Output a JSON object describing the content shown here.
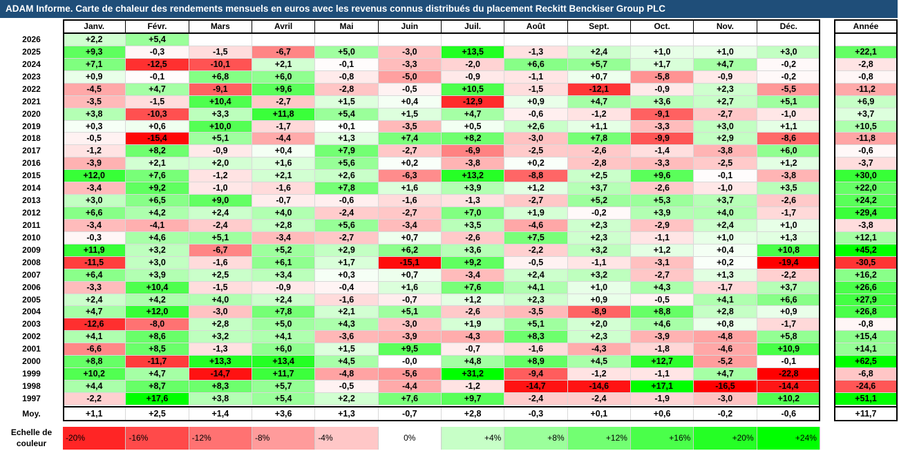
{
  "title": "ADAM Informe. Carte de chaleur des rendements mensuels en euros avec les revenus connus distribués du placement Reckitt Benckiser Group PLC",
  "chart_data": {
    "type": "heatmap",
    "columns": [
      "Janv.",
      "Févr.",
      "Mars",
      "Avril",
      "Mai",
      "Juin",
      "Juil.",
      "Août",
      "Sept.",
      "Oct.",
      "Nov.",
      "Déc."
    ],
    "year_header": "Année",
    "rows": [
      {
        "year": "2026",
        "months": [
          "+2,2",
          "+5,4",
          "",
          "",
          "",
          "",
          "",
          "",
          "",
          "",
          "",
          ""
        ],
        "annual": ""
      },
      {
        "year": "2025",
        "months": [
          "+9,3",
          "-0,3",
          "-1,5",
          "-6,7",
          "+5,0",
          "-3,0",
          "+13,5",
          "-1,3",
          "+2,4",
          "+1,0",
          "+1,0",
          "+3,0"
        ],
        "annual": "+22,1"
      },
      {
        "year": "2024",
        "months": [
          "+7,1",
          "-12,5",
          "-10,1",
          "+2,1",
          "-0,1",
          "-3,3",
          "-2,0",
          "+6,6",
          "+5,7",
          "+1,7",
          "+4,7",
          "-0,2"
        ],
        "annual": "-2,8"
      },
      {
        "year": "2023",
        "months": [
          "+0,9",
          "-0,1",
          "+6,8",
          "+6,0",
          "-0,8",
          "-5,0",
          "-0,9",
          "-1,1",
          "+0,7",
          "-5,8",
          "-0,9",
          "-0,2"
        ],
        "annual": "-0,8"
      },
      {
        "year": "2022",
        "months": [
          "-4,5",
          "+4,7",
          "-9,1",
          "+9,6",
          "-2,8",
          "-0,5",
          "+10,5",
          "-1,5",
          "-12,1",
          "-0,9",
          "+2,3",
          "-5,5"
        ],
        "annual": "-11,2"
      },
      {
        "year": "2021",
        "months": [
          "-3,5",
          "-1,5",
          "+10,4",
          "-2,7",
          "+1,5",
          "+0,4",
          "-12,9",
          "+0,9",
          "+4,7",
          "+3,6",
          "+2,7",
          "+5,1"
        ],
        "annual": "+6,9"
      },
      {
        "year": "2020",
        "months": [
          "+3,8",
          "-10,3",
          "+3,3",
          "+11,8",
          "+5,4",
          "+1,5",
          "+4,7",
          "-0,6",
          "-1,2",
          "-9,1",
          "-2,7",
          "-1,0"
        ],
        "annual": "+3,7"
      },
      {
        "year": "2019",
        "months": [
          "+0,3",
          "+0,6",
          "+10,0",
          "-1,7",
          "+0,1",
          "-3,5",
          "+0,5",
          "+2,6",
          "+1,1",
          "-3,3",
          "+3,0",
          "+1,1"
        ],
        "annual": "+10,5"
      },
      {
        "year": "2018",
        "months": [
          "-0,5",
          "-15,4",
          "+5,1",
          "-4,4",
          "+1,3",
          "+7,4",
          "+8,2",
          "-3,0",
          "+7,8",
          "-9,9",
          "+2,9",
          "-8,6"
        ],
        "annual": "-11,8"
      },
      {
        "year": "2017",
        "months": [
          "-1,2",
          "+8,2",
          "-0,9",
          "+0,4",
          "+7,9",
          "-2,7",
          "-6,9",
          "-2,5",
          "-2,6",
          "-1,4",
          "-3,8",
          "+6,0"
        ],
        "annual": "-0,6"
      },
      {
        "year": "2016",
        "months": [
          "-3,9",
          "+2,1",
          "+2,0",
          "+1,6",
          "+5,6",
          "+0,2",
          "-3,8",
          "+0,2",
          "-2,8",
          "-3,3",
          "-2,5",
          "+1,2"
        ],
        "annual": "-3,7"
      },
      {
        "year": "2015",
        "months": [
          "+12,0",
          "+7,6",
          "-1,2",
          "+2,1",
          "+2,6",
          "-6,3",
          "+13,2",
          "-8,8",
          "+2,5",
          "+9,6",
          "-0,1",
          "-3,8"
        ],
        "annual": "+30,0"
      },
      {
        "year": "2014",
        "months": [
          "-3,4",
          "+9,2",
          "-1,0",
          "-1,6",
          "+7,8",
          "+1,6",
          "+3,9",
          "+1,2",
          "+3,7",
          "-2,6",
          "-1,0",
          "+3,5"
        ],
        "annual": "+22,0"
      },
      {
        "year": "2013",
        "months": [
          "+3,0",
          "+6,5",
          "+9,0",
          "-0,7",
          "-0,6",
          "-1,6",
          "-1,3",
          "-2,7",
          "+5,2",
          "+5,3",
          "+3,7",
          "-2,6"
        ],
        "annual": "+24,2"
      },
      {
        "year": "2012",
        "months": [
          "+6,6",
          "+4,2",
          "+2,4",
          "+4,0",
          "-2,4",
          "-2,7",
          "+7,0",
          "+1,9",
          "-0,2",
          "+3,9",
          "+4,0",
          "-1,7"
        ],
        "annual": "+29,4"
      },
      {
        "year": "2011",
        "months": [
          "-3,4",
          "-4,1",
          "-2,4",
          "+2,8",
          "+5,6",
          "-3,4",
          "+3,5",
          "-4,6",
          "+2,3",
          "-2,9",
          "+2,4",
          "+1,0"
        ],
        "annual": "-3,8"
      },
      {
        "year": "2010",
        "months": [
          "-0,3",
          "+4,6",
          "+5,1",
          "-3,4",
          "-2,7",
          "+0,7",
          "-2,6",
          "+7,5",
          "+2,3",
          "-1,1",
          "+1,0",
          "+1,3"
        ],
        "annual": "+12,1"
      },
      {
        "year": "2009",
        "months": [
          "+11,9",
          "+3,2",
          "-6,7",
          "+5,2",
          "+2,9",
          "+6,2",
          "+3,6",
          "-2,2",
          "+3,2",
          "+1,2",
          "+0,4",
          "+10,8"
        ],
        "annual": "+45,2"
      },
      {
        "year": "2008",
        "months": [
          "-11,5",
          "+3,0",
          "-1,6",
          "+6,1",
          "+1,7",
          "-15,1",
          "+9,2",
          "-0,5",
          "-1,1",
          "-3,1",
          "+0,2",
          "-19,4"
        ],
        "annual": "-30,5"
      },
      {
        "year": "2007",
        "months": [
          "+6,4",
          "+3,9",
          "+2,5",
          "+3,4",
          "+0,3",
          "+0,7",
          "-3,4",
          "+2,4",
          "+3,2",
          "-2,7",
          "+1,3",
          "-2,2"
        ],
        "annual": "+16,2"
      },
      {
        "year": "2006",
        "months": [
          "-3,3",
          "+10,4",
          "-1,5",
          "-0,9",
          "-0,4",
          "+1,6",
          "+7,6",
          "+4,1",
          "+1,0",
          "+4,3",
          "-1,7",
          "+3,7"
        ],
        "annual": "+26,6"
      },
      {
        "year": "2005",
        "months": [
          "+2,4",
          "+4,2",
          "+4,0",
          "+2,4",
          "-1,6",
          "-0,7",
          "+1,2",
          "+2,3",
          "+0,9",
          "-0,5",
          "+4,1",
          "+6,6"
        ],
        "annual": "+27,9"
      },
      {
        "year": "2004",
        "months": [
          "+4,7",
          "+12,0",
          "-3,0",
          "+7,8",
          "+2,1",
          "+5,1",
          "-2,6",
          "-3,5",
          "-8,9",
          "+8,8",
          "+2,8",
          "+0,9"
        ],
        "annual": "+26,8"
      },
      {
        "year": "2003",
        "months": [
          "-12,6",
          "-8,0",
          "+2,8",
          "+5,0",
          "+4,3",
          "-3,0",
          "+1,9",
          "+5,1",
          "+2,0",
          "+4,6",
          "+0,8",
          "-1,7"
        ],
        "annual": "-0,8"
      },
      {
        "year": "2002",
        "months": [
          "+4,1",
          "+8,6",
          "+3,2",
          "+4,1",
          "-3,6",
          "-3,9",
          "-4,3",
          "+8,3",
          "+2,3",
          "-3,9",
          "-4,8",
          "+5,8"
        ],
        "annual": "+15,4"
      },
      {
        "year": "2001",
        "months": [
          "-6,6",
          "+8,5",
          "-1,3",
          "+6,0",
          "+1,5",
          "+9,5",
          "-0,7",
          "-1,6",
          "-4,3",
          "-1,8",
          "-4,6",
          "+10,9"
        ],
        "annual": "+14,1"
      },
      {
        "year": "2000",
        "months": [
          "+8,8",
          "-11,7",
          "+13,3",
          "+13,4",
          "+4,5",
          "-0,0",
          "+4,8",
          "+8,9",
          "+4,5",
          "+12,7",
          "-5,2",
          "-0,1"
        ],
        "annual": "+62,5"
      },
      {
        "year": "1999",
        "months": [
          "+10,2",
          "+4,7",
          "-14,7",
          "+11,7",
          "-4,8",
          "-5,6",
          "+31,2",
          "-9,4",
          "-1,2",
          "-1,1",
          "+4,7",
          "-22,8"
        ],
        "annual": "-6,8"
      },
      {
        "year": "1998",
        "months": [
          "+4,4",
          "+8,7",
          "+8,3",
          "+5,7",
          "-0,5",
          "-4,4",
          "-1,2",
          "-14,7",
          "-14,6",
          "+17,1",
          "-16,5",
          "-14,4"
        ],
        "annual": "-24,6"
      },
      {
        "year": "1997",
        "months": [
          "-2,2",
          "+17,6",
          "+3,8",
          "+5,4",
          "+2,2",
          "+7,6",
          "+9,7",
          "-2,4",
          "-2,4",
          "-1,9",
          "-3,0",
          "+10,2"
        ],
        "annual": "+51,1"
      }
    ],
    "average": {
      "label": "Moy.",
      "months": [
        "+1,1",
        "+2,5",
        "+1,4",
        "+3,6",
        "+1,3",
        "-0,7",
        "+2,8",
        "-0,3",
        "+0,1",
        "+0,6",
        "-0,2",
        "-0,6"
      ],
      "annual": "+11,7"
    },
    "scale": {
      "label_line1": "Echelle de",
      "label_line2": "couleur",
      "stops": [
        "-20%",
        "-16%",
        "-12%",
        "-8%",
        "-4%",
        "0%",
        "+4%",
        "+8%",
        "+12%",
        "+16%",
        "+20%",
        "+24%"
      ],
      "stop_values": [
        -20,
        -16,
        -12,
        -8,
        -4,
        0,
        4,
        8,
        12,
        16,
        20,
        24
      ]
    },
    "colors": {
      "negative": "#ff0000",
      "neutral": "#ffffff",
      "positive": "#00ff00",
      "title_bg": "#1f4e79"
    }
  }
}
